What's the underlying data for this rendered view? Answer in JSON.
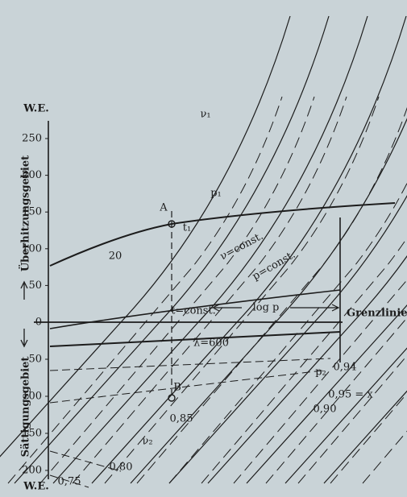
{
  "axis": {
    "top_unit": "W.E.",
    "bottom_unit": "W.E.",
    "upper_ticks": [
      "250",
      "200",
      "150",
      "100",
      "50",
      "0"
    ],
    "lower_ticks": [
      "50",
      "100",
      "150",
      "200"
    ]
  },
  "regions": {
    "upper": "Überhitzungsgebiet",
    "lower": "Sättigungsgebiet"
  },
  "boundary": "Grenzlinie",
  "labels": {
    "v1": "ν₁",
    "p1": "p₁",
    "A": "A",
    "t1": "t₁",
    "twenty": "20",
    "v_const": "ν=const.",
    "p_const": "p=const.",
    "t_const": "t=const.",
    "log_p": "log p",
    "lambda": "λ=600",
    "p2": "p₂",
    "x094": "0,94",
    "x095": "0,95 = x",
    "x090": "0,90",
    "B": "B",
    "x085": "0,85",
    "v2": "ν₂",
    "x080": "0,80",
    "x075": "0,75"
  }
}
